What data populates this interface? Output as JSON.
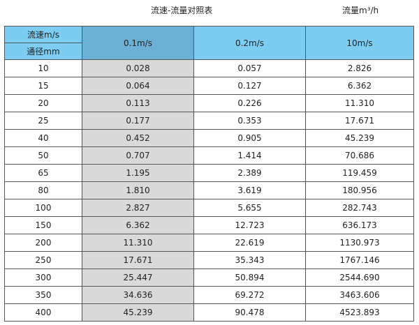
{
  "title": "流速-流量对照表",
  "unit_label": "流量m³/h",
  "header": {
    "velocity_label": "流速m/s",
    "diameter_label": "通径mm",
    "columns": [
      "0.1m/s",
      "0.2m/s",
      "10m/s"
    ]
  },
  "colors": {
    "header": "#7dcdf3",
    "highlight_header": "#6cb0d6",
    "highlight_column": "#d9d9d9"
  },
  "rows": [
    [
      "10",
      "0.028",
      "0.057",
      "2.826"
    ],
    [
      "15",
      "0.064",
      "0.127",
      "6.362"
    ],
    [
      "20",
      "0.113",
      "0.226",
      "11.310"
    ],
    [
      "25",
      "0.177",
      "0.353",
      "17.671"
    ],
    [
      "40",
      "0.452",
      "0.905",
      "45.239"
    ],
    [
      "50",
      "0.707",
      "1.414",
      "70.686"
    ],
    [
      "65",
      "1.195",
      "2.389",
      "119.459"
    ],
    [
      "80",
      "1.810",
      "3.619",
      "180.956"
    ],
    [
      "100",
      "2.827",
      "5.655",
      "282.743"
    ],
    [
      "150",
      "6.362",
      "12.723",
      "636.173"
    ],
    [
      "200",
      "11.310",
      "22.619",
      "1130.973"
    ],
    [
      "250",
      "17.671",
      "35.343",
      "1767.146"
    ],
    [
      "300",
      "25.447",
      "50.894",
      "2544.690"
    ],
    [
      "350",
      "34.636",
      "69.272",
      "3463.606"
    ],
    [
      "400",
      "45.239",
      "90.478",
      "4523.893"
    ]
  ]
}
